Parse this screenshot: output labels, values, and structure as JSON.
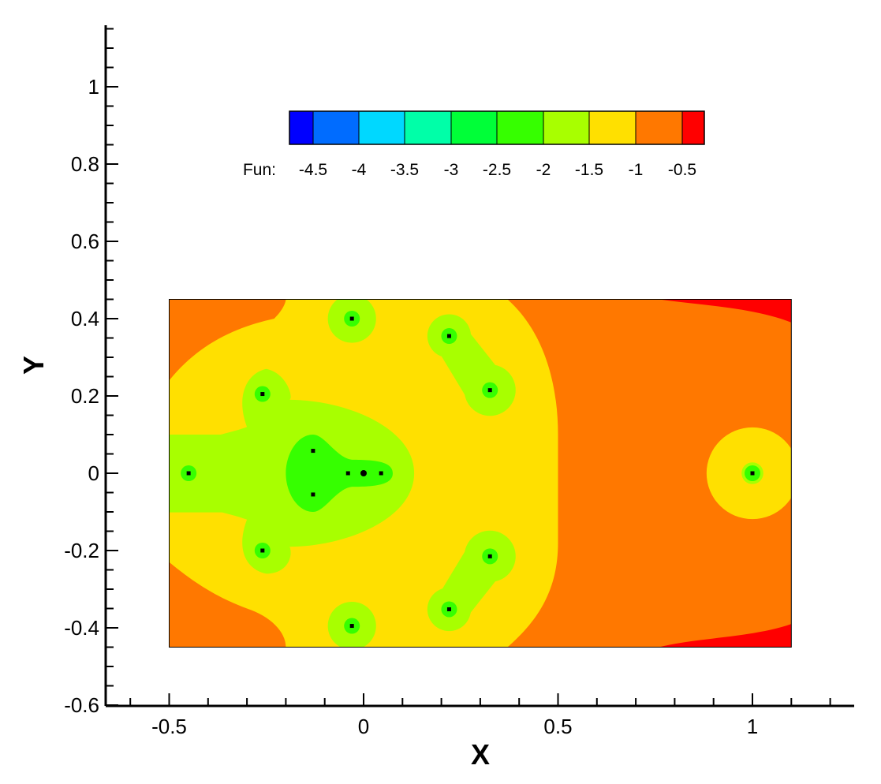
{
  "chart_data": {
    "type": "heatmap",
    "xlabel": "X",
    "ylabel": "Y",
    "xlim": [
      -0.65,
      1.27
    ],
    "ylim": [
      -0.6,
      1.15
    ],
    "xticks": [
      {
        "value": -0.5,
        "label": "-0.5"
      },
      {
        "value": 0,
        "label": "0"
      },
      {
        "value": 0.5,
        "label": "0.5"
      },
      {
        "value": 1,
        "label": "1"
      }
    ],
    "yticks": [
      {
        "value": -0.6,
        "label": "-0.6"
      },
      {
        "value": -0.4,
        "label": "-0.4"
      },
      {
        "value": -0.2,
        "label": "-0.2"
      },
      {
        "value": 0,
        "label": "0"
      },
      {
        "value": 0.2,
        "label": "0.2"
      },
      {
        "value": 0.4,
        "label": "0.4"
      },
      {
        "value": 0.6,
        "label": "0.6"
      },
      {
        "value": 0.8,
        "label": "0.8"
      },
      {
        "value": 1,
        "label": "1"
      }
    ],
    "domain": {
      "x": [
        -0.5,
        1.1
      ],
      "y": [
        -0.45,
        0.45
      ]
    },
    "legend": {
      "title": "Fun:",
      "placement": "top-center",
      "levels": [
        {
          "value": -4.5,
          "label": "-4.5",
          "color": "#0000ff"
        },
        {
          "value": -4,
          "label": "-4",
          "color": "#006cff"
        },
        {
          "value": -3.5,
          "label": "-3.5",
          "color": "#00d8ff"
        },
        {
          "value": -3,
          "label": "-3",
          "color": "#00ffa8"
        },
        {
          "value": -2.5,
          "label": "-2.5",
          "color": "#00ff38"
        },
        {
          "value": -2,
          "label": "-2",
          "color": "#36ff00"
        },
        {
          "value": -1.5,
          "label": "-1.5",
          "color": "#a8ff00"
        },
        {
          "value": -1,
          "label": "-1",
          "color": "#ffe000"
        },
        {
          "value": -0.5,
          "label": "-0.5",
          "color": "#ff7800"
        },
        {
          "value": 0,
          "label": "",
          "color": "#ff0000"
        }
      ]
    },
    "regions": {
      "background": "#ff7800",
      "yellow": "#ffe000",
      "lime": "#a8ff00",
      "green": "#36ff00",
      "red": "#ff0000"
    },
    "points": [
      {
        "x": -0.03,
        "y": 0.4
      },
      {
        "x": 0.22,
        "y": 0.355
      },
      {
        "x": -0.26,
        "y": 0.205
      },
      {
        "x": 0.325,
        "y": 0.215
      },
      {
        "x": -0.45,
        "y": 0.0
      },
      {
        "x": -0.13,
        "y": 0.058
      },
      {
        "x": -0.13,
        "y": -0.055
      },
      {
        "x": -0.04,
        "y": 0.0
      },
      {
        "x": 0.0,
        "y": 0.0
      },
      {
        "x": 0.045,
        "y": 0.0
      },
      {
        "x": 1.0,
        "y": 0.0
      },
      {
        "x": -0.26,
        "y": -0.2
      },
      {
        "x": 0.325,
        "y": -0.215
      },
      {
        "x": 0.22,
        "y": -0.352
      },
      {
        "x": -0.03,
        "y": -0.395
      }
    ]
  }
}
